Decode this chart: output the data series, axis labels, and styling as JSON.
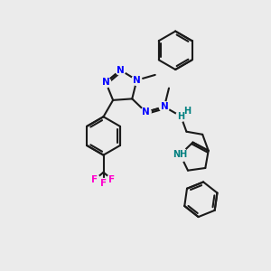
{
  "bg_color": "#ebebeb",
  "bond_color": "#1a1a1a",
  "N_color": "#0000ff",
  "NH_color": "#008080",
  "F_color": "#ff00cc",
  "lw": 1.5,
  "fs": 7.5,
  "figsize": [
    3.0,
    3.0
  ],
  "dpi": 100,
  "xlim": [
    0,
    10
  ],
  "ylim": [
    0,
    10
  ]
}
